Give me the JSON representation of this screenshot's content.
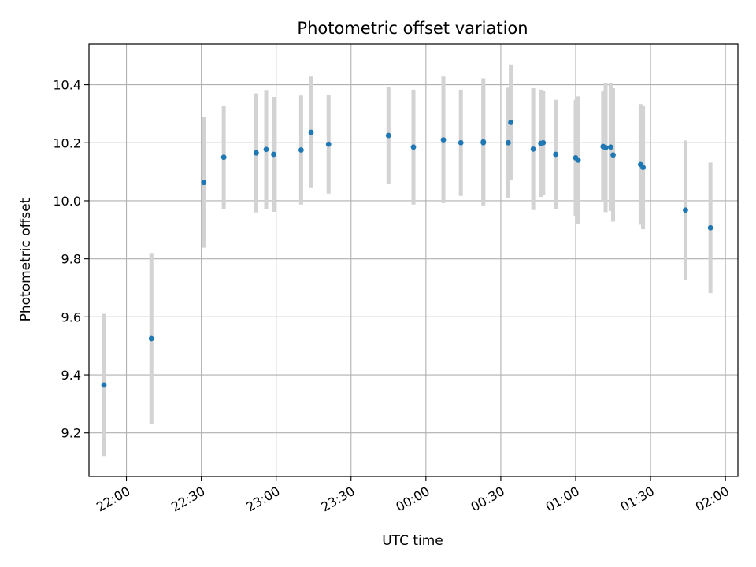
{
  "chart_data": {
    "type": "scatter",
    "title": "Photometric offset variation",
    "xlabel": "UTC time",
    "ylabel": "Photometric offset",
    "x_axis": {
      "type": "time",
      "range": [
        "21:45",
        "02:05"
      ],
      "ticks": [
        "22:00",
        "22:30",
        "23:00",
        "23:30",
        "00:00",
        "00:30",
        "01:00",
        "01:30",
        "02:00"
      ]
    },
    "y_axis": {
      "range": [
        9.05,
        10.54
      ],
      "ticks": [
        "9.2",
        "9.4",
        "9.6",
        "9.8",
        "10.0",
        "10.2",
        "10.4"
      ]
    },
    "grid": true,
    "colors": {
      "point": "#1f77b4",
      "errorbar": "#d3d3d3",
      "grid": "#b0b0b0"
    },
    "points": [
      {
        "t": "21:51",
        "y": 9.365,
        "err": 0.245
      },
      {
        "t": "22:10",
        "y": 9.525,
        "err": 0.295
      },
      {
        "t": "22:31",
        "y": 10.063,
        "err": 0.225
      },
      {
        "t": "22:39",
        "y": 10.15,
        "err": 0.178
      },
      {
        "t": "22:52",
        "y": 10.165,
        "err": 0.205
      },
      {
        "t": "22:56",
        "y": 10.177,
        "err": 0.205
      },
      {
        "t": "22:59",
        "y": 10.16,
        "err": 0.198
      },
      {
        "t": "23:10",
        "y": 10.175,
        "err": 0.188
      },
      {
        "t": "23:14",
        "y": 10.236,
        "err": 0.192
      },
      {
        "t": "23:21",
        "y": 10.195,
        "err": 0.17
      },
      {
        "t": "23:45",
        "y": 10.225,
        "err": 0.168
      },
      {
        "t": "23:55",
        "y": 10.185,
        "err": 0.198
      },
      {
        "t": "00:07",
        "y": 10.21,
        "err": 0.218
      },
      {
        "t": "00:14",
        "y": 10.2,
        "err": 0.183
      },
      {
        "t": "00:23",
        "y": 10.203,
        "err": 0.219
      },
      {
        "t": "00:23",
        "y": 10.2,
        "err": 0.2
      },
      {
        "t": "00:33",
        "y": 10.2,
        "err": 0.19
      },
      {
        "t": "00:34",
        "y": 10.27,
        "err": 0.2
      },
      {
        "t": "00:43",
        "y": 10.178,
        "err": 0.21
      },
      {
        "t": "00:46",
        "y": 10.198,
        "err": 0.185
      },
      {
        "t": "00:47",
        "y": 10.2,
        "err": 0.18
      },
      {
        "t": "00:52",
        "y": 10.16,
        "err": 0.188
      },
      {
        "t": "01:00",
        "y": 10.148,
        "err": 0.2
      },
      {
        "t": "01:01",
        "y": 10.14,
        "err": 0.22
      },
      {
        "t": "01:11",
        "y": 10.187,
        "err": 0.19
      },
      {
        "t": "01:12",
        "y": 10.183,
        "err": 0.222
      },
      {
        "t": "01:14",
        "y": 10.185,
        "err": 0.22
      },
      {
        "t": "01:15",
        "y": 10.158,
        "err": 0.23
      },
      {
        "t": "01:26",
        "y": 10.125,
        "err": 0.208
      },
      {
        "t": "01:27",
        "y": 10.115,
        "err": 0.213
      },
      {
        "t": "01:44",
        "y": 9.968,
        "err": 0.24
      },
      {
        "t": "01:54",
        "y": 9.907,
        "err": 0.225
      }
    ]
  }
}
